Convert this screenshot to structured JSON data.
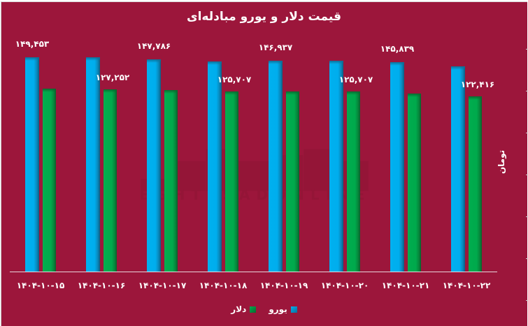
{
  "chart_data": {
    "type": "bar",
    "title": "قیمت دلار و یورو مبادله‌ای",
    "xlabel": "",
    "ylabel": "تومان",
    "categories": [
      "۱۴۰۴-۱۰-۱۵",
      "۱۴۰۴-۱۰-۱۶",
      "۱۴۰۴-۱۰-۱۷",
      "۱۴۰۴-۱۰-۱۸",
      "۱۴۰۴-۱۰-۱۹",
      "۱۴۰۴-۱۰-۲۰",
      "۱۴۰۴-۱۰-۲۱",
      "۱۴۰۴-۱۰-۲۲"
    ],
    "series": [
      {
        "name": "یورو",
        "color": "#00b0ef",
        "values": [
          149453,
          149300,
          147786,
          146500,
          146937,
          147000,
          145839,
          143100
        ]
      },
      {
        "name": "دلار",
        "color": "#00ad4e",
        "values": [
          127500,
          127252,
          126600,
          125707,
          125700,
          125707,
          124200,
          122416
        ]
      }
    ],
    "data_labels": [
      {
        "category_index": 0,
        "series": "یورو",
        "text": "۱۴۹,۴۵۳"
      },
      {
        "category_index": 1,
        "series": "دلار",
        "text": "۱۲۷,۲۵۲"
      },
      {
        "category_index": 2,
        "series": "یورو",
        "text": "۱۴۷,۷۸۶"
      },
      {
        "category_index": 3,
        "series": "دلار",
        "text": "۱۲۵,۷۰۷"
      },
      {
        "category_index": 4,
        "series": "یورو",
        "text": "۱۴۶,۹۳۷"
      },
      {
        "category_index": 5,
        "series": "دلار",
        "text": "۱۲۵,۷۰۷"
      },
      {
        "category_index": 6,
        "series": "یورو",
        "text": "۱۴۵,۸۳۹"
      },
      {
        "category_index": 7,
        "series": "دلار",
        "text": "۱۲۲,۴۱۶"
      }
    ],
    "ylim": [
      0,
      189000
    ],
    "grid": false,
    "legend_position": "bottom"
  },
  "legend": {
    "euro": "یورو",
    "dollar": "دلار"
  },
  "colors": {
    "background": "#9c163b",
    "euro": "#00b0ef",
    "dollar": "#00ad4e",
    "text": "#ffffff"
  }
}
